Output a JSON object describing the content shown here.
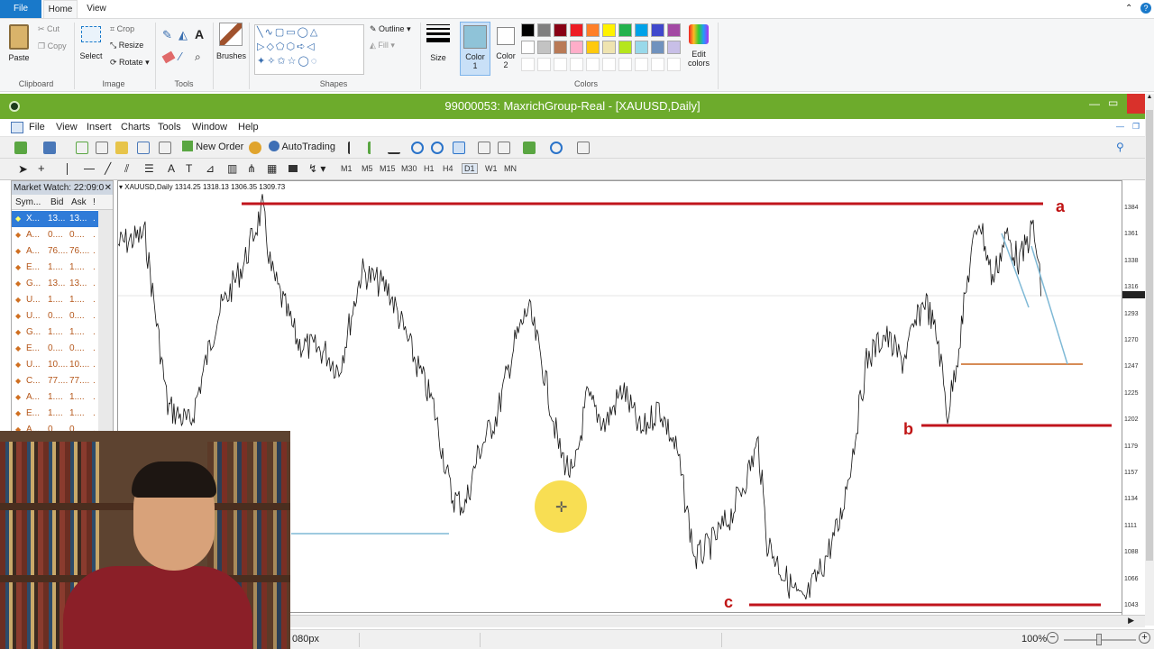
{
  "paint": {
    "tabs": [
      "File",
      "Home",
      "View"
    ],
    "clipboard": {
      "paste": "Paste",
      "cut": "Cut",
      "copy": "Copy",
      "group": "Clipboard"
    },
    "image": {
      "select": "Select",
      "crop": "Crop",
      "resize": "Resize",
      "rotate": "Rotate",
      "group": "Image"
    },
    "tools": {
      "group": "Tools"
    },
    "brushes": "Brushes",
    "shapes": {
      "outline": "Outline",
      "fill": "Fill",
      "group": "Shapes"
    },
    "size": "Size",
    "color1": "Color\n1",
    "color1_a": "Color",
    "color1_b": "1",
    "color2_a": "Color",
    "color2_b": "2",
    "colors_group": "Colors",
    "edit_colors_a": "Edit",
    "edit_colors_b": "colors",
    "palette_row1": [
      "#000000",
      "#7f7f7f",
      "#880015",
      "#ed1c24",
      "#ff7f27",
      "#fff200",
      "#22b14c",
      "#00a2e8",
      "#3f48cc",
      "#a349a4"
    ],
    "palette_row2": [
      "#ffffff",
      "#c3c3c3",
      "#b97a57",
      "#ffaec9",
      "#ffc90e",
      "#efe4b0",
      "#b5e61d",
      "#99d9ea",
      "#7092be",
      "#c8bfe7"
    ],
    "status_size": "080px",
    "zoom": "100%"
  },
  "mt4": {
    "title": "99000053: MaxrichGroup-Real - [XAUUSD,Daily]",
    "menu": [
      "File",
      "View",
      "Insert",
      "Charts",
      "Tools",
      "Window",
      "Help"
    ],
    "toolbar": {
      "new_order": "New Order",
      "autotrading": "AutoTrading"
    },
    "timeframes": [
      "M1",
      "M5",
      "M15",
      "M30",
      "H1",
      "H4",
      "D1",
      "W1",
      "MN"
    ],
    "market_watch": {
      "title": "Market Watch: 22:09:0",
      "columns": [
        "Sym...",
        "Bid",
        "Ask",
        "!"
      ],
      "rows": [
        {
          "sym": "X...",
          "bid": "13...",
          "ask": "13..."
        },
        {
          "sym": "A...",
          "bid": "0....",
          "ask": "0...."
        },
        {
          "sym": "A...",
          "bid": "76....",
          "ask": "76...."
        },
        {
          "sym": "E...",
          "bid": "1....",
          "ask": "1...."
        },
        {
          "sym": "G...",
          "bid": "13...",
          "ask": "13..."
        },
        {
          "sym": "U...",
          "bid": "1....",
          "ask": "1...."
        },
        {
          "sym": "U...",
          "bid": "0....",
          "ask": "0...."
        },
        {
          "sym": "G...",
          "bid": "1....",
          "ask": "1...."
        },
        {
          "sym": "E...",
          "bid": "0....",
          "ask": "0...."
        },
        {
          "sym": "U...",
          "bid": "10....",
          "ask": "10...."
        },
        {
          "sym": "C...",
          "bid": "77....",
          "ask": "77...."
        },
        {
          "sym": "A...",
          "bid": "1....",
          "ask": "1...."
        },
        {
          "sym": "E...",
          "bid": "1....",
          "ask": "1...."
        },
        {
          "sym": "A...",
          "bid": "0",
          "ask": "0"
        }
      ]
    },
    "chart_info": "XAUUSD,Daily  1314.25 1318.13 1306.35 1309.73",
    "price_ticks": [
      "1384",
      "1361",
      "1338",
      "1316",
      "1293",
      "1270",
      "1247",
      "1225",
      "1202",
      "1179",
      "1157",
      "1134",
      "1111",
      "1088",
      "1066",
      "1043"
    ],
    "wave_labels": {
      "a": "a",
      "b": "b",
      "c": "c"
    },
    "colors": {
      "level_line": "#c0141c",
      "trend_line": "#7fb9d6",
      "support_line": "#c8651e",
      "title_bar": "#6dab2c"
    }
  }
}
